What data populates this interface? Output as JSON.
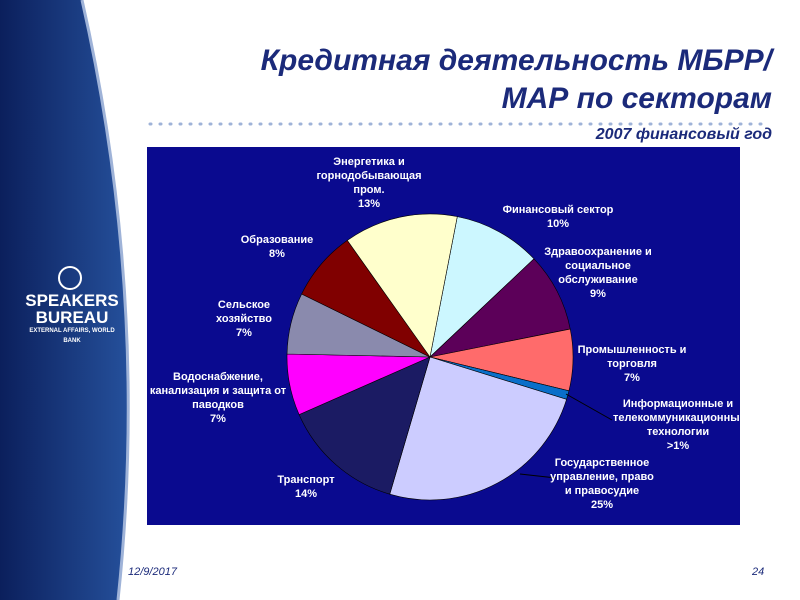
{
  "chart_data": {
    "type": "pie",
    "title": "Кредитная деятельность МБРР/МАР по секторам",
    "subtitle": "2007 финансовый год",
    "categories": [
      "Финансовый сектор",
      "Здравоохранение и социальное обслуживание",
      "Промышленность и торговля",
      "Информационные и телекоммуникационные технологии",
      "Государственное управление, право и правосудие",
      "Транспорт",
      "Водоснабжение, канализация и защита от паводков",
      "Сельское хозяйство",
      "Образование",
      "Энергетика и горнодобывающая пром."
    ],
    "values": [
      10,
      9,
      7,
      1,
      25,
      14,
      7,
      7,
      8,
      13
    ],
    "value_labels": [
      "10%",
      "9%",
      "7%",
      ">1%",
      "25%",
      "14%",
      "7%",
      "7%",
      "8%",
      "13%"
    ],
    "colors": [
      "#ccf7ff",
      "#5c0059",
      "#ff6b6b",
      "#0a6fc9",
      "#ccccff",
      "#1b1b63",
      "#ff00ff",
      "#8a8aad",
      "#800000",
      "#ffffcc"
    ]
  },
  "logo": {
    "name": "SPEAKERS BUREAU",
    "subtitle": "EXTERNAL AFFAIRS, WORLD BANK"
  },
  "footer": {
    "date": "12/9/2017",
    "page": "24"
  }
}
